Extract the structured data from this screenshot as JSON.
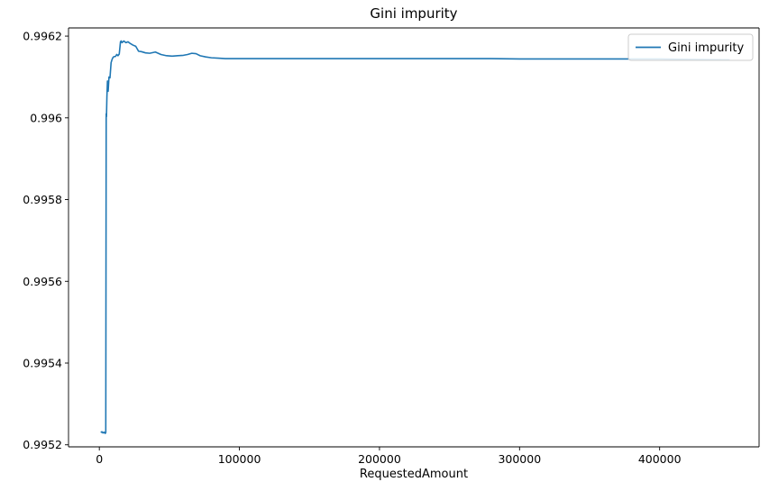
{
  "chart_data": {
    "type": "line",
    "title": "Gini impurity",
    "xlabel": "RequestedAmount",
    "ylabel": "",
    "xlim": [
      -22000,
      471000
    ],
    "ylim": [
      0.995195,
      0.99622
    ],
    "xticks": [
      {
        "value": 0,
        "label": "0"
      },
      {
        "value": 100000,
        "label": "100000"
      },
      {
        "value": 200000,
        "label": "200000"
      },
      {
        "value": 300000,
        "label": "300000"
      },
      {
        "value": 400000,
        "label": "400000"
      }
    ],
    "yticks": [
      {
        "value": 0.9952,
        "label": "0.9952"
      },
      {
        "value": 0.9954,
        "label": "0.9954"
      },
      {
        "value": 0.9956,
        "label": "0.9956"
      },
      {
        "value": 0.9958,
        "label": "0.9958"
      },
      {
        "value": 0.996,
        "label": "0.996"
      },
      {
        "value": 0.9962,
        "label": "0.9962"
      }
    ],
    "grid": false,
    "legend": {
      "position": "top-right",
      "entries": [
        "Gini impurity"
      ]
    },
    "series": [
      {
        "name": "Gini impurity",
        "color": "#1f77b4",
        "x": [
          1000,
          1800,
          2600,
          3400,
          4200,
          4600,
          4900,
          5100,
          5400,
          5800,
          6300,
          6900,
          7600,
          8400,
          9100,
          9800,
          10600,
          11500,
          12400,
          13300,
          14200,
          15100,
          15600,
          16200,
          17500,
          19000,
          20500,
          22000,
          24000,
          26000,
          28000,
          30000,
          33000,
          36000,
          40000,
          44000,
          48000,
          52000,
          56000,
          60000,
          63000,
          66000,
          69000,
          72000,
          76000,
          80000,
          85000,
          90000,
          100000,
          150000,
          200000,
          250000,
          280000,
          300000,
          350000,
          400000,
          420000,
          450000
        ],
        "y": [
          0.99523,
          0.995232,
          0.995229,
          0.995231,
          0.995228,
          0.99523,
          0.99601,
          0.996003,
          0.99605,
          0.99609,
          0.996065,
          0.9961,
          0.996098,
          0.996135,
          0.996143,
          0.996148,
          0.99615,
          0.99615,
          0.996155,
          0.996152,
          0.996156,
          0.996186,
          0.996188,
          0.996184,
          0.996188,
          0.996184,
          0.996186,
          0.996182,
          0.996178,
          0.996175,
          0.996163,
          0.996162,
          0.996159,
          0.996158,
          0.996161,
          0.996155,
          0.996152,
          0.996151,
          0.996152,
          0.996153,
          0.996155,
          0.996158,
          0.996157,
          0.996152,
          0.996149,
          0.996147,
          0.996146,
          0.996145,
          0.996145,
          0.996145,
          0.996145,
          0.996145,
          0.996145,
          0.996144,
          0.996144,
          0.996144,
          0.996143,
          0.996142
        ]
      }
    ]
  }
}
